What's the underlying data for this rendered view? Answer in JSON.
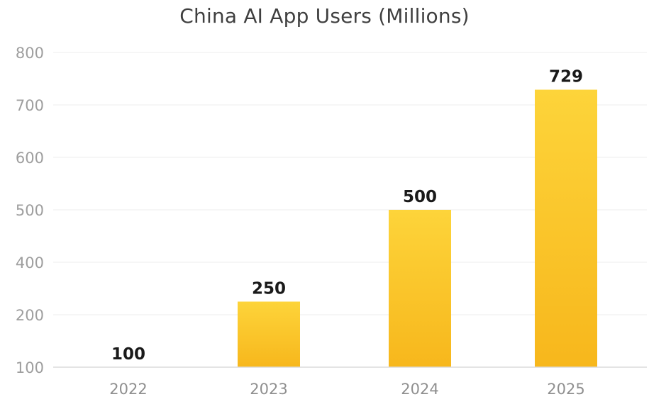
{
  "chart_data": {
    "type": "bar",
    "title": "China AI App Users (Millions)",
    "xlabel": "",
    "ylabel": "",
    "categories": [
      "2022",
      "2023",
      "2024",
      "2025"
    ],
    "values": [
      100,
      250,
      500,
      729
    ],
    "data_labels": [
      "100",
      "250",
      "500",
      "729"
    ],
    "y_ticks": [
      100,
      200,
      400,
      500,
      600,
      700,
      800
    ],
    "y_tick_labels": [
      "100",
      "200",
      "400",
      "500",
      "600",
      "700",
      "800"
    ],
    "ylim": [
      100,
      800
    ],
    "grid": true,
    "legend": "none",
    "bar_color_top": "#fdd43a",
    "bar_color_bottom": "#f7b71c"
  }
}
